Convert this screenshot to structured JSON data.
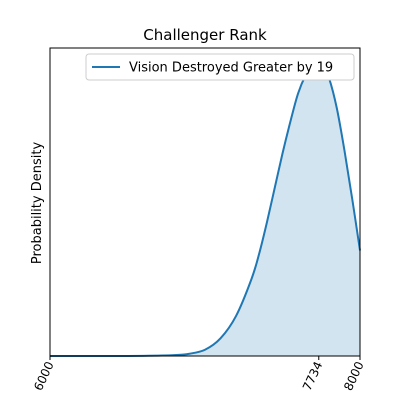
{
  "chart_data": {
    "type": "area",
    "title": "Challenger Rank",
    "xlabel": "",
    "ylabel": "Probability Density",
    "xlim": [
      6000,
      8000
    ],
    "ylim": [
      0,
      1.08
    ],
    "xticks": [
      6000,
      7734,
      8000
    ],
    "xtick_labels": [
      "6000",
      "7734",
      "8000"
    ],
    "yticks_visible": false,
    "grid": false,
    "legend": {
      "position": "top-right"
    },
    "series": [
      {
        "name": "Vision Destroyed Greater by 19",
        "color": "#1f77b4",
        "fill_color": "#1f77b4",
        "fill_alpha": 0.2,
        "x": [
          6000,
          6200,
          6400,
          6600,
          6800,
          6900,
          7000,
          7100,
          7200,
          7300,
          7350,
          7400,
          7450,
          7500,
          7550,
          7600,
          7650,
          7700,
          7734,
          7760,
          7800,
          7850,
          7900,
          7950,
          8000
        ],
        "y": [
          0.0,
          0.0,
          0.0,
          0.0005,
          0.003,
          0.008,
          0.022,
          0.062,
          0.14,
          0.27,
          0.36,
          0.47,
          0.59,
          0.71,
          0.82,
          0.92,
          0.985,
          1.025,
          1.03,
          1.02,
          0.975,
          0.87,
          0.72,
          0.55,
          0.37
        ]
      }
    ]
  }
}
